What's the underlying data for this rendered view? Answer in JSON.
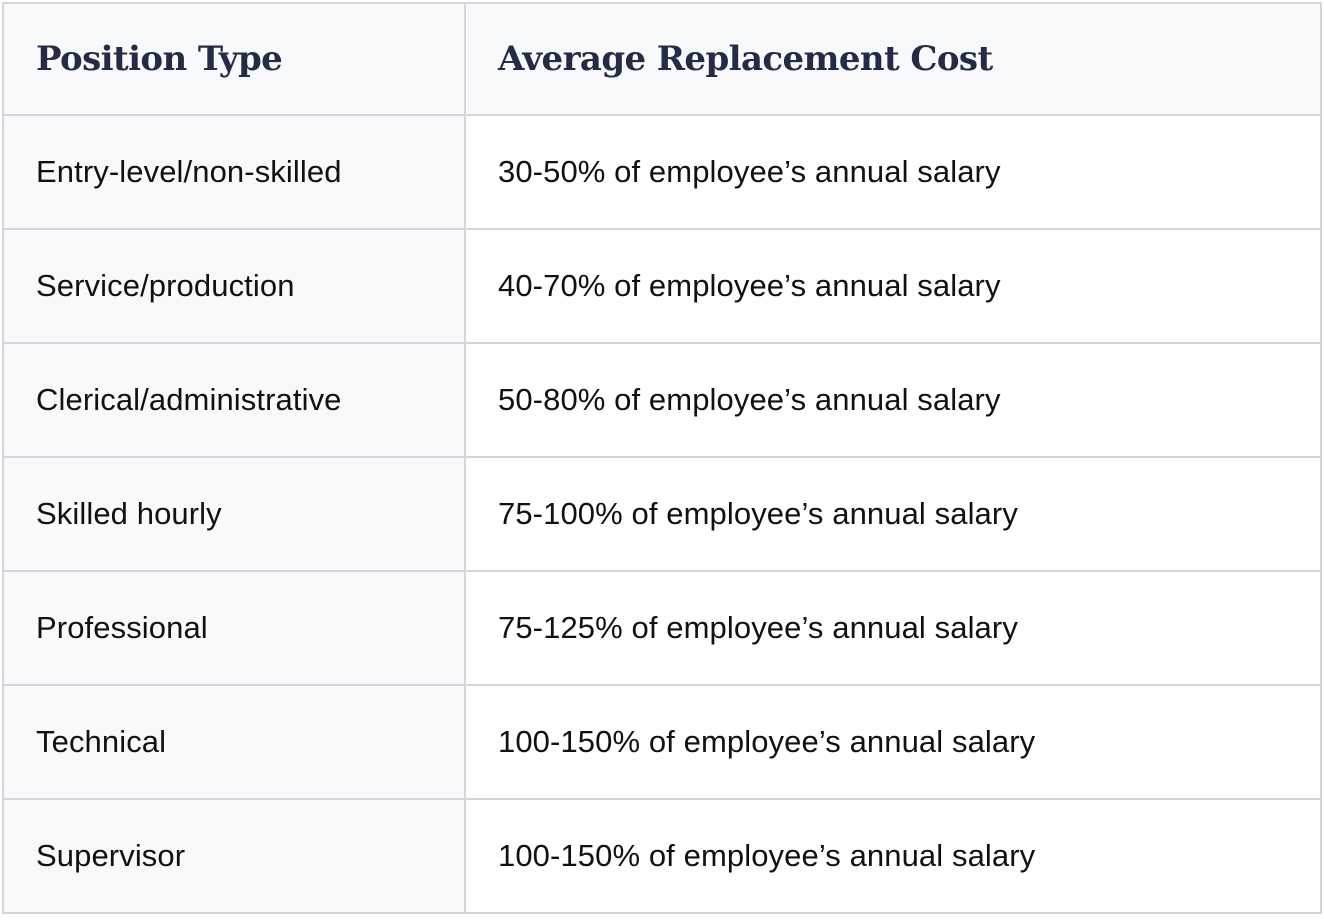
{
  "table": {
    "headers": {
      "position": "Position Type",
      "cost": "Average Replacement Cost"
    },
    "rows": [
      {
        "position": "Entry-level/non-skilled",
        "cost": "30-50% of employee’s annual salary"
      },
      {
        "position": "Service/production",
        "cost": "40-70% of employee’s annual salary"
      },
      {
        "position": "Clerical/administrative",
        "cost": "50-80% of employee’s annual salary"
      },
      {
        "position": "Skilled hourly",
        "cost": "75-100% of employee’s annual salary"
      },
      {
        "position": "Professional",
        "cost": "75-125% of employee’s annual salary"
      },
      {
        "position": "Technical",
        "cost": "100-150% of employee’s annual salary"
      },
      {
        "position": "Supervisor",
        "cost": "100-150% of employee’s annual salary"
      }
    ]
  },
  "colors": {
    "header_text": "#232b47",
    "body_text": "#111111",
    "shaded_cell": "#f8f9fb",
    "border": "#d4d6da"
  }
}
